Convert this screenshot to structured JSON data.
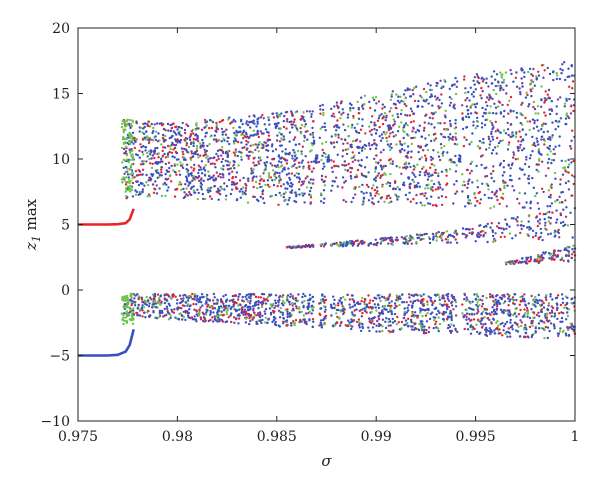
{
  "chart_data": {
    "type": "scatter",
    "title": "",
    "xlabel": "σ",
    "ylabel_main": "z",
    "ylabel_sub": "1",
    "ylabel_rest": " max",
    "xlim": [
      0.975,
      1.0
    ],
    "ylim": [
      -10,
      20
    ],
    "xticks": [
      0.975,
      0.98,
      0.985,
      0.99,
      0.995,
      1.0
    ],
    "xtick_labels": [
      "0.975",
      "0.98",
      "0.985",
      "0.99",
      "0.995",
      "1"
    ],
    "yticks": [
      -10,
      -5,
      0,
      5,
      10,
      15,
      20
    ],
    "ytick_labels": [
      "−10",
      "−5",
      "0",
      "5",
      "10",
      "15",
      "20"
    ],
    "grid": false,
    "colors": {
      "blue": "#3a4fbf",
      "red": "#e8232a",
      "green": "#6cc24a",
      "purple": "#8a3f9e"
    },
    "series": [
      {
        "color": "red",
        "role": "upper-periodic",
        "points": [
          [
            0.975,
            5.0
          ],
          [
            0.9765,
            5.0
          ],
          [
            0.977,
            5.02
          ],
          [
            0.9774,
            5.1
          ],
          [
            0.9776,
            5.4
          ],
          [
            0.9778,
            6.2
          ]
        ]
      },
      {
        "color": "blue",
        "role": "lower-periodic",
        "points": [
          [
            0.975,
            -5.0
          ],
          [
            0.9765,
            -5.0
          ],
          [
            0.977,
            -4.95
          ],
          [
            0.9774,
            -4.7
          ],
          [
            0.9776,
            -4.2
          ],
          [
            0.9778,
            -3.0
          ]
        ]
      },
      {
        "color": "mixed",
        "role": "upper-chaotic-band",
        "envelope": [
          {
            "x": 0.9773,
            "low": 7.0,
            "high": 13.0
          },
          {
            "x": 0.98,
            "low": 7.0,
            "high": 12.8
          },
          {
            "x": 0.985,
            "low": 6.5,
            "high": 13.5
          },
          {
            "x": 0.99,
            "low": 6.5,
            "high": 15.0
          },
          {
            "x": 0.995,
            "low": 6.2,
            "high": 16.5
          },
          {
            "x": 1.0,
            "low": 6.0,
            "high": 17.5
          }
        ]
      },
      {
        "color": "mixed",
        "role": "lower-chaotic-band",
        "envelope": [
          {
            "x": 0.9773,
            "low": -2.0,
            "high": -0.3
          },
          {
            "x": 0.98,
            "low": -2.3,
            "high": -0.3
          },
          {
            "x": 0.985,
            "low": -2.8,
            "high": -0.3
          },
          {
            "x": 0.99,
            "low": -3.2,
            "high": -0.3
          },
          {
            "x": 0.995,
            "low": -3.5,
            "high": -0.3
          },
          {
            "x": 1.0,
            "low": -3.8,
            "high": -0.3
          }
        ]
      },
      {
        "color": "mixed",
        "role": "middle-branch",
        "envelope": [
          {
            "x": 0.9855,
            "low": 3.2,
            "high": 3.3
          },
          {
            "x": 0.99,
            "low": 3.4,
            "high": 3.9
          },
          {
            "x": 0.994,
            "low": 3.6,
            "high": 4.6
          },
          {
            "x": 1.0,
            "low": 3.8,
            "high": 6.5
          }
        ]
      },
      {
        "color": "mixed",
        "role": "lowest-middle-branch",
        "envelope": [
          {
            "x": 0.9965,
            "low": 1.9,
            "high": 2.1
          },
          {
            "x": 1.0,
            "low": 2.2,
            "high": 3.5
          }
        ]
      }
    ],
    "periodic_windows": [
      0.987,
      0.9876,
      0.9942
    ]
  }
}
